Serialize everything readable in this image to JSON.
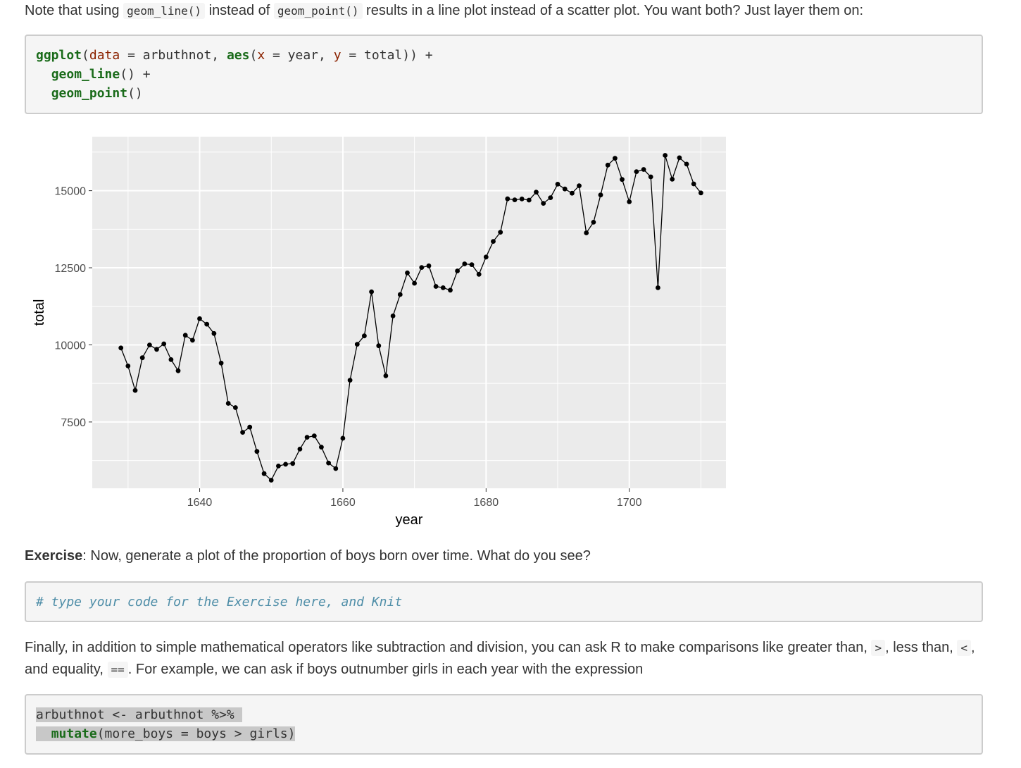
{
  "intro": {
    "t1": "Note that using ",
    "c1": "geom_line()",
    "t2": " instead of ",
    "c2": "geom_point()",
    "t3": " results in a line plot instead of a scatter plot. You want both? Just layer them on:"
  },
  "code1": {
    "l1_fn": "ggplot",
    "l1_p1": "(",
    "l1_a1": "data",
    "l1_p2": " = arbuthnot, ",
    "l1_fn2": "aes",
    "l1_p3": "(",
    "l1_a2": "x",
    "l1_p4": " = year, ",
    "l1_a3": "y",
    "l1_p5": " = total)) +",
    "l2_fn": "geom_line",
    "l2_p": "() +",
    "l3_fn": "geom_point",
    "l3_p": "()"
  },
  "chart_data": {
    "type": "line",
    "title": "",
    "xlabel": "year",
    "ylabel": "total",
    "xlim": [
      1625,
      1713.5
    ],
    "ylim": [
      5350,
      16750
    ],
    "x_ticks": [
      1640,
      1660,
      1680,
      1700
    ],
    "y_ticks": [
      7500,
      10000,
      12500,
      15000
    ],
    "x_minor": [
      1630,
      1650,
      1670,
      1690,
      1710
    ],
    "y_minor": [
      6250,
      8750,
      11250,
      13750,
      16250
    ],
    "grid": true,
    "colors": {
      "panel": "#ebebeb",
      "grid": "#ffffff",
      "line": "#000000",
      "tick_label": "#4d4d4d"
    },
    "x": [
      1629,
      1630,
      1631,
      1632,
      1633,
      1634,
      1635,
      1636,
      1637,
      1638,
      1639,
      1640,
      1641,
      1642,
      1643,
      1644,
      1645,
      1646,
      1647,
      1648,
      1649,
      1650,
      1651,
      1652,
      1653,
      1654,
      1655,
      1656,
      1657,
      1658,
      1659,
      1660,
      1661,
      1662,
      1663,
      1664,
      1665,
      1666,
      1667,
      1668,
      1669,
      1670,
      1671,
      1672,
      1673,
      1674,
      1675,
      1676,
      1677,
      1678,
      1679,
      1680,
      1681,
      1682,
      1683,
      1684,
      1685,
      1686,
      1687,
      1688,
      1689,
      1690,
      1691,
      1692,
      1693,
      1694,
      1695,
      1696,
      1697,
      1698,
      1699,
      1700,
      1701,
      1702,
      1703,
      1704,
      1705,
      1706,
      1707,
      1708,
      1709,
      1710
    ],
    "y": [
      9901,
      9315,
      8524,
      9584,
      9997,
      9855,
      10034,
      9522,
      9160,
      10311,
      10150,
      10850,
      10670,
      10370,
      9410,
      8104,
      7966,
      7163,
      7332,
      6544,
      5825,
      5612,
      6071,
      6128,
      6155,
      6620,
      7004,
      7050,
      6685,
      6170,
      5990,
      6971,
      8855,
      10019,
      10292,
      11722,
      9972,
      8997,
      10938,
      11633,
      12335,
      11997,
      12510,
      12563,
      11895,
      11851,
      11775,
      12399,
      12626,
      12601,
      12288,
      12847,
      13355,
      13653,
      14735,
      14702,
      14730,
      14694,
      14951,
      14588,
      14771,
      15211,
      15054,
      14918,
      15159,
      13632,
      13976,
      14861,
      15829,
      16052,
      15363,
      14639,
      15616,
      15687,
      15448,
      11851,
      16145,
      15369,
      16066,
      15862,
      15220,
      14928
    ]
  },
  "exercise": {
    "label": "Exercise",
    "text": ": Now, generate a plot of the proportion of boys born over time. What do you see?"
  },
  "code2": {
    "comment": "# type your code for the Exercise here, and Knit"
  },
  "para3": {
    "t1": "Finally, in addition to simple mathematical operators like subtraction and division, you can ask R to make comparisons like greater than, ",
    "c1": ">",
    "t2": ", less than, ",
    "c2": "<",
    "t3": ", and equality, ",
    "c3": "==",
    "t4": ". For example, we can ask if boys outnumber girls in each year with the expression"
  },
  "code3": {
    "l1": "arbuthnot <- arbuthnot %>% ",
    "l2_indent": "  ",
    "l2_fn": "mutate",
    "l2_p": "(more_boys = boys > girls)"
  }
}
